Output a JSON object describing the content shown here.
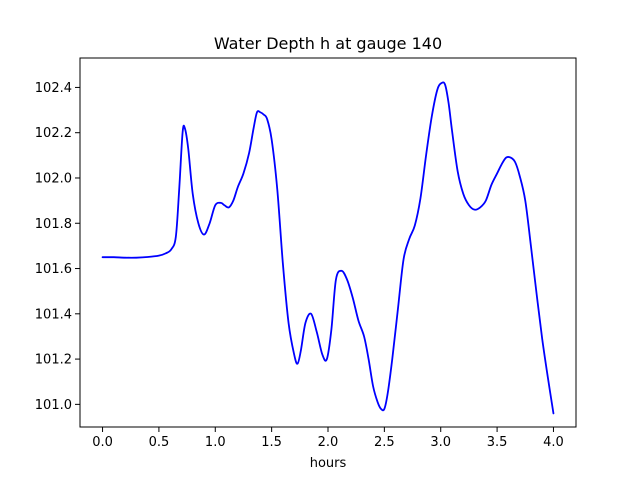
{
  "chart_data": {
    "type": "line",
    "title": "Water Depth h at gauge 140",
    "xlabel": "hours",
    "ylabel": "",
    "xlim": [
      -0.2,
      4.2
    ],
    "ylim": [
      100.9,
      102.53
    ],
    "xticks": [
      "0.0",
      "0.5",
      "1.0",
      "1.5",
      "2.0",
      "2.5",
      "3.0",
      "3.5",
      "4.0"
    ],
    "yticks": [
      "101.0",
      "101.2",
      "101.4",
      "101.6",
      "101.8",
      "102.0",
      "102.2",
      "102.4"
    ],
    "grid": false,
    "line_color": "#0000ff",
    "series": [
      {
        "x": [
          0.0,
          0.1,
          0.2,
          0.3,
          0.4,
          0.5,
          0.56,
          0.61,
          0.65,
          0.68,
          0.71,
          0.73,
          0.76,
          0.8,
          0.85,
          0.9,
          0.95,
          1.0,
          1.05,
          1.08,
          1.12,
          1.16,
          1.2,
          1.25,
          1.3,
          1.34,
          1.37,
          1.4,
          1.43,
          1.46,
          1.5,
          1.55,
          1.6,
          1.65,
          1.7,
          1.73,
          1.76,
          1.8,
          1.85,
          1.9,
          1.95,
          1.99,
          2.03,
          2.07,
          2.12,
          2.17,
          2.22,
          2.27,
          2.32,
          2.36,
          2.4,
          2.44,
          2.47,
          2.5,
          2.53,
          2.57,
          2.62,
          2.67,
          2.72,
          2.77,
          2.82,
          2.87,
          2.92,
          2.97,
          3.01,
          3.04,
          3.07,
          3.1,
          3.15,
          3.2,
          3.25,
          3.3,
          3.35,
          3.4,
          3.45,
          3.5,
          3.54,
          3.58,
          3.62,
          3.66,
          3.7,
          3.75,
          3.8,
          3.85,
          3.9,
          3.95,
          4.0
        ],
        "values": [
          101.65,
          101.65,
          101.648,
          101.648,
          101.651,
          101.657,
          101.667,
          101.685,
          101.74,
          101.95,
          102.2,
          102.22,
          102.13,
          101.93,
          101.8,
          101.75,
          101.8,
          101.88,
          101.89,
          101.88,
          101.87,
          101.9,
          101.96,
          102.02,
          102.11,
          102.22,
          102.29,
          102.29,
          102.28,
          102.26,
          102.17,
          101.95,
          101.62,
          101.36,
          101.22,
          101.18,
          101.24,
          101.36,
          101.4,
          101.32,
          101.22,
          101.2,
          101.33,
          101.55,
          101.59,
          101.55,
          101.47,
          101.37,
          101.3,
          101.2,
          101.08,
          101.01,
          100.98,
          100.98,
          101.05,
          101.2,
          101.42,
          101.64,
          101.73,
          101.79,
          101.91,
          102.1,
          102.27,
          102.39,
          102.42,
          102.41,
          102.33,
          102.21,
          102.03,
          101.93,
          101.88,
          101.86,
          101.87,
          101.9,
          101.97,
          102.02,
          102.06,
          102.09,
          102.09,
          102.07,
          102.01,
          101.9,
          101.7,
          101.49,
          101.29,
          101.12,
          100.96
        ]
      }
    ]
  }
}
